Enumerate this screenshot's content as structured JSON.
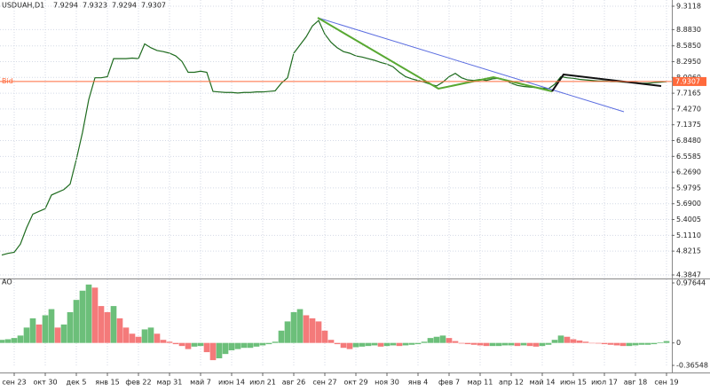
{
  "chart_data": [
    {
      "type": "line",
      "title": "USDUAH,D1",
      "ohlc": [
        7.9294,
        7.9323,
        7.9294,
        7.9307
      ],
      "bid_label": "Bid",
      "bid": 7.9307,
      "bid_color": "#ff6a3c",
      "color": "#1e6b1e",
      "grid": true,
      "categories": [
        null,
        null,
        "сен 23",
        null,
        null,
        null,
        null,
        "окт 30",
        null,
        null,
        null,
        null,
        "дек 5",
        null,
        null,
        null,
        null,
        "янв 15",
        null,
        null,
        null,
        null,
        "фев 22",
        null,
        null,
        null,
        null,
        "мар 31",
        null,
        null,
        null,
        null,
        "май 7",
        null,
        null,
        null,
        null,
        "июн 14",
        null,
        null,
        null,
        null,
        "июл 21",
        null,
        null,
        null,
        null,
        "авг 26",
        null,
        null,
        null,
        null,
        "сен 27",
        null,
        null,
        null,
        null,
        "окт 29",
        null,
        null,
        null,
        null,
        "ноя 30",
        null,
        null,
        null,
        null,
        "янв 4",
        null,
        null,
        null,
        null,
        "фев 7",
        null,
        null,
        null,
        null,
        "мар 11",
        null,
        null,
        null,
        null,
        "апр 12",
        null,
        null,
        null,
        null,
        "май 14",
        null,
        null,
        null,
        null,
        "июн 15",
        null,
        null,
        null,
        null,
        "июл 17",
        null,
        null,
        null,
        null,
        "авг 18",
        null,
        null,
        null,
        null,
        "сен 19"
      ],
      "values": [
        4.75,
        4.78,
        4.8,
        4.95,
        5.25,
        5.5,
        5.55,
        5.6,
        5.85,
        5.9,
        5.95,
        6.05,
        6.5,
        7.0,
        7.6,
        8.0,
        8.0,
        8.02,
        8.35,
        8.35,
        8.35,
        8.36,
        8.35,
        8.62,
        8.55,
        8.5,
        8.48,
        8.45,
        8.4,
        8.3,
        8.1,
        8.1,
        8.12,
        8.1,
        7.75,
        7.74,
        7.73,
        7.73,
        7.72,
        7.73,
        7.73,
        7.74,
        7.74,
        7.75,
        7.76,
        7.9,
        8.0,
        8.45,
        8.6,
        8.75,
        8.95,
        9.05,
        8.8,
        8.65,
        8.55,
        8.48,
        8.45,
        8.4,
        8.38,
        8.35,
        8.32,
        8.28,
        8.25,
        8.2,
        8.1,
        8.02,
        7.98,
        7.95,
        7.92,
        7.88,
        7.85,
        7.92,
        8.02,
        8.08,
        8.0,
        7.96,
        7.95,
        7.97,
        7.95,
        7.98,
        7.99,
        7.96,
        7.9,
        7.86,
        7.84,
        7.83,
        7.82,
        7.81,
        7.8,
        7.88,
        8.02,
        8.0,
        7.99,
        7.97,
        7.96,
        7.95,
        7.94,
        7.94,
        7.93,
        7.93,
        7.92,
        7.92,
        7.91,
        7.9,
        7.9,
        7.91,
        7.92,
        7.93
      ],
      "ylim": [
        4.3847,
        9.3118
      ],
      "yticks": [
        9.3118,
        {
          "value": 8.883,
          "label": "8.8830"
        },
        {
          "value": 8.585,
          "label": "8.5850"
        },
        {
          "value": 8.295,
          "label": "8.2950"
        },
        {
          "value": 8.006,
          "label": "8.0060"
        },
        7.7165,
        {
          "value": 7.427,
          "label": "7.4270"
        },
        7.1375,
        {
          "value": 6.848,
          "label": "6.8480"
        },
        6.5585,
        {
          "value": 6.269,
          "label": "6.2690"
        },
        5.9795,
        {
          "value": 5.69,
          "label": "5.6900"
        },
        5.4005,
        {
          "value": 5.111,
          "label": "5.1110"
        },
        4.8215,
        4.3847
      ]
    },
    {
      "type": "bar",
      "title": "AO",
      "up_color": "#6cbf7a",
      "down_color": "#f47a7a",
      "values": [
        0.05,
        0.06,
        0.08,
        0.12,
        0.25,
        0.4,
        0.3,
        0.45,
        0.55,
        0.25,
        0.3,
        0.5,
        0.7,
        0.85,
        0.95,
        0.9,
        0.6,
        0.5,
        0.6,
        0.4,
        0.25,
        0.15,
        0.1,
        0.22,
        0.25,
        0.15,
        0.05,
        0.02,
        -0.02,
        -0.05,
        -0.1,
        -0.06,
        -0.05,
        -0.15,
        -0.28,
        -0.25,
        -0.18,
        -0.12,
        -0.1,
        -0.08,
        -0.08,
        -0.06,
        -0.04,
        -0.02,
        0.02,
        0.2,
        0.35,
        0.5,
        0.55,
        0.45,
        0.4,
        0.35,
        0.2,
        0.05,
        -0.02,
        -0.08,
        -0.1,
        -0.07,
        -0.06,
        -0.05,
        -0.04,
        -0.06,
        -0.05,
        -0.04,
        -0.05,
        -0.04,
        -0.03,
        -0.02,
        0.02,
        0.08,
        0.1,
        0.12,
        0.08,
        0.03,
        -0.01,
        -0.02,
        -0.03,
        -0.04,
        -0.05,
        -0.05,
        -0.05,
        -0.04,
        -0.04,
        -0.05,
        -0.04,
        -0.05,
        -0.06,
        -0.05,
        -0.03,
        0.05,
        0.12,
        0.1,
        0.06,
        0.04,
        0.02,
        0.0,
        -0.01,
        -0.02,
        -0.03,
        -0.04,
        -0.05,
        -0.05,
        -0.04,
        -0.03,
        -0.03,
        -0.02,
        0.01,
        0.03
      ],
      "ylim": [
        -0.36548,
        0.97644
      ],
      "yticks": [
        0.97644,
        0,
        -0.36548
      ]
    }
  ]
}
